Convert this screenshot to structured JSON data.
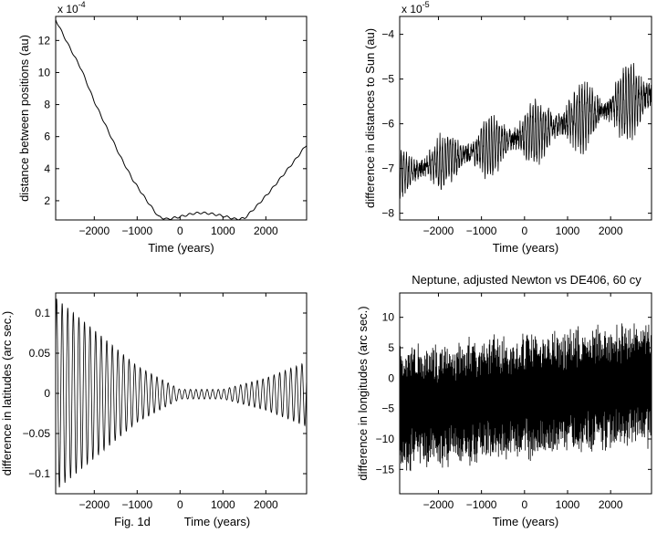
{
  "chart_data": [
    {
      "id": "tl",
      "type": "line",
      "title": "",
      "xlabel": "Time (years)",
      "ylabel": "distance between positions (au)",
      "scale_label": "x 10",
      "scale_exp": "-4",
      "xlim": [
        -2900,
        2950
      ],
      "ylim": [
        0.8,
        13.5
      ],
      "xticks": [
        -2000,
        -1000,
        0,
        1000,
        2000
      ],
      "xtick_labels": [
        "−2000",
        "−1000",
        "0",
        "1000",
        "2000"
      ],
      "yticks": [
        2,
        4,
        6,
        8,
        10,
        12
      ],
      "ytick_labels": [
        "2",
        "4",
        "6",
        "8",
        "10",
        "12"
      ],
      "grid": false,
      "x": [
        -2900,
        -2600,
        -2300,
        -2000,
        -1700,
        -1400,
        -1100,
        -800,
        -500,
        -300,
        0,
        300,
        500,
        700,
        1000,
        1300,
        1500,
        1800,
        2100,
        2400,
        2700,
        2950
      ],
      "y": [
        13.3,
        11.7,
        10.2,
        8.2,
        6.5,
        4.8,
        3.3,
        2.1,
        1.0,
        0.85,
        1.0,
        1.2,
        1.25,
        1.2,
        1.05,
        0.85,
        0.9,
        1.7,
        2.6,
        3.6,
        4.6,
        5.5
      ]
    },
    {
      "id": "tr",
      "type": "line",
      "title": "",
      "xlabel": "Time (years)",
      "ylabel": "difference in distances to Sun (au)",
      "scale_label": "x 10",
      "scale_exp": "-5",
      "xlim": [
        -2900,
        2950
      ],
      "ylim": [
        -8.15,
        -3.6
      ],
      "xticks": [
        -2000,
        -1000,
        0,
        1000,
        2000
      ],
      "xtick_labels": [
        "−2000",
        "−1000",
        "0",
        "1000",
        "2000"
      ],
      "yticks": [
        -8,
        -7,
        -6,
        -5,
        -4
      ],
      "ytick_labels": [
        "−8",
        "−7",
        "−6",
        "−5",
        "−4"
      ],
      "grid": false,
      "trend_x": [
        -2900,
        2950
      ],
      "trend_y": [
        -7.15,
        -5.35
      ],
      "oscillation_amplitude_start": 0.5,
      "oscillation_amplitude_end": 0.75,
      "oscillation_period_years": 60
    },
    {
      "id": "bl",
      "type": "line",
      "title": "",
      "xlabel": "Time (years)",
      "xlabel_prefix": "Fig. 1d",
      "ylabel": "difference in latitudes (arc sec.)",
      "xlim": [
        -2900,
        2950
      ],
      "ylim": [
        -0.125,
        0.125
      ],
      "xticks": [
        -2000,
        -1000,
        0,
        1000,
        2000
      ],
      "xtick_labels": [
        "−2000",
        "−1000",
        "0",
        "1000",
        "2000"
      ],
      "yticks": [
        -0.1,
        -0.05,
        0,
        0.05,
        0.1
      ],
      "ytick_labels": [
        "−0.1",
        "−0.05",
        "0",
        "0.05",
        "0.1"
      ],
      "grid": false,
      "envelope_x": [
        -2900,
        -2000,
        -1000,
        0,
        1000,
        2000,
        2950
      ],
      "envelope_amplitude": [
        0.12,
        0.08,
        0.035,
        0.006,
        0.006,
        0.02,
        0.04
      ],
      "oscillation_period_years": 130
    },
    {
      "id": "br",
      "type": "line",
      "title": "Neptune, adjusted Newton vs DE406, 60 cy",
      "xlabel": "Time (years)",
      "ylabel": "difference in longitudes (arc sec.)",
      "xlim": [
        -2900,
        2950
      ],
      "ylim": [
        -19,
        14
      ],
      "xticks": [
        -2000,
        -1000,
        0,
        1000,
        2000
      ],
      "xtick_labels": [
        "−2000",
        "−1000",
        "0",
        "1000",
        "2000"
      ],
      "yticks": [
        -15,
        -10,
        -5,
        0,
        5,
        10
      ],
      "ytick_labels": [
        "−15",
        "−10",
        "−5",
        "0",
        "5",
        "10"
      ],
      "grid": false,
      "trend_x": [
        -2900,
        2950
      ],
      "trend_y": [
        -5,
        -1
      ],
      "oscillation_amplitude": 7.5,
      "oscillation_period_years": 20
    }
  ]
}
